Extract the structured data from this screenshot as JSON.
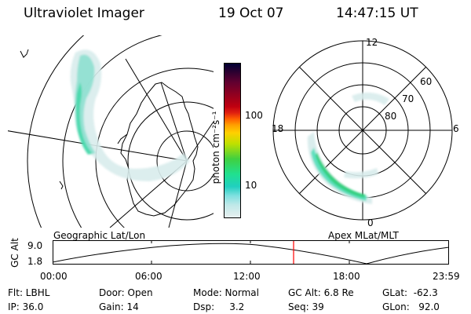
{
  "header": {
    "instrument": "Ultraviolet Imager",
    "date": "19 Oct 07",
    "time": "14:47:15 UT"
  },
  "colorbar": {
    "label": "photon cm⁻²s⁻¹",
    "ticks": [
      "100",
      "10"
    ],
    "scale": "log",
    "colors": [
      "#000033",
      "#300030",
      "#600030",
      "#900020",
      "#c00010",
      "#e02010",
      "#ff6000",
      "#ffa000",
      "#ffd000",
      "#c0e000",
      "#40d040",
      "#20e090",
      "#20d0c0",
      "#80e0e0",
      "#c0e8e8",
      "#e8f0f0"
    ]
  },
  "geo_panel": {
    "label": "Geographic Lat/Lon"
  },
  "polar_panel": {
    "label": "Apex MLat/MLT",
    "mlt_labels": {
      "top": "12",
      "left": "18",
      "right": "6",
      "bottom": "0"
    },
    "lat_labels": [
      "60",
      "70",
      "80"
    ]
  },
  "altitude_plot": {
    "ylabel": "GC Alt",
    "yticks": [
      "9.0",
      "1.8"
    ],
    "xticks": [
      "00:00",
      "06:00",
      "12:00",
      "18:00",
      "23:59"
    ],
    "current_time_color": "#ff0000"
  },
  "info": {
    "filter": "Flt: LBHL",
    "ip": "IP: 36.0",
    "door": "Door: Open",
    "gain": "Gain: 14",
    "mode": "Mode: Normal",
    "dsp": "Dsp:     3.2",
    "gc_alt": "GC Alt: 6.8 Re",
    "seq": "Seq: 39",
    "glat": "GLat:  -62.3",
    "glon": "GLon:   92.0"
  }
}
